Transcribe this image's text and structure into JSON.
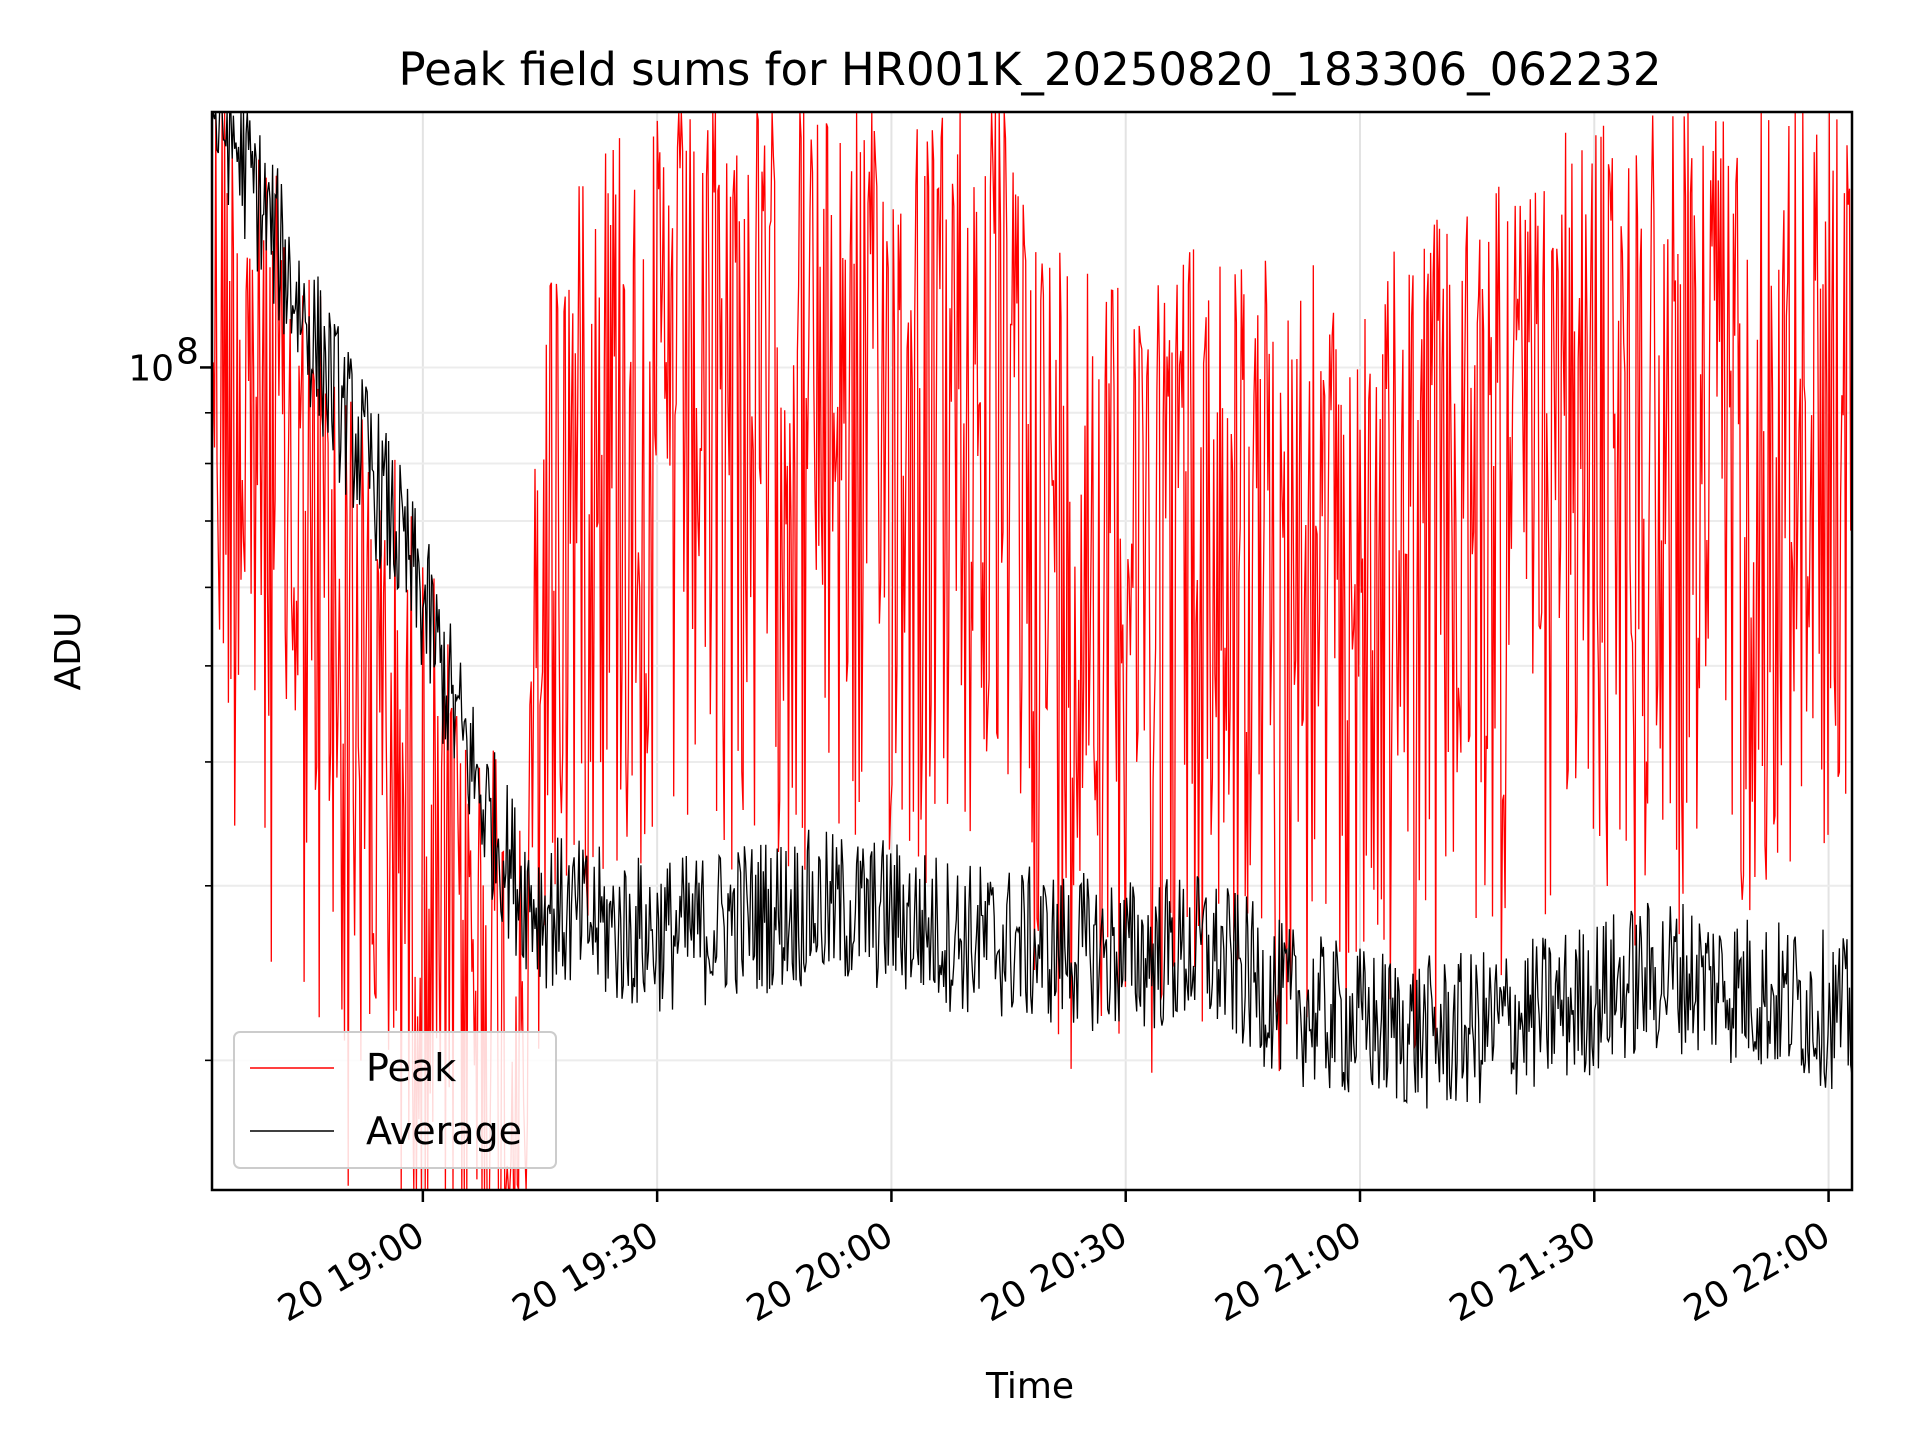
{
  "chart_data": {
    "type": "line",
    "title": "Peak field sums for HR001K_20250820_183306_062232",
    "xlabel": "Time",
    "ylabel": "ADU",
    "x_range": [
      "2025-08-20 18:33",
      "2025-08-20 22:03"
    ],
    "x_ticks": [
      {
        "t": "2025-08-20 19:00",
        "label": "20 19:00"
      },
      {
        "t": "2025-08-20 19:30",
        "label": "20 19:30"
      },
      {
        "t": "2025-08-20 20:00",
        "label": "20 20:00"
      },
      {
        "t": "2025-08-20 20:30",
        "label": "20 20:30"
      },
      {
        "t": "2025-08-20 21:00",
        "label": "20 21:00"
      },
      {
        "t": "2025-08-20 21:30",
        "label": "20 21:30"
      },
      {
        "t": "2025-08-20 22:00",
        "label": "20 22:00"
      }
    ],
    "y_scale": "log",
    "ylim": [
      14800000,
      181000000
    ],
    "y_ticks": [
      {
        "value": 100000000,
        "label": "10",
        "exp": "8"
      }
    ],
    "grid": true,
    "legend_position": "lower-left",
    "series": [
      {
        "name": "Peak",
        "color": "#ff0000",
        "points": [
          [
            "2025-08-20 18:33",
            181000000
          ],
          [
            "2025-08-20 18:37",
            160000000
          ],
          [
            "2025-08-20 18:40",
            130000000
          ],
          [
            "2025-08-20 18:43",
            118000000
          ],
          [
            "2025-08-20 18:46",
            100000000
          ],
          [
            "2025-08-20 18:49",
            88000000
          ],
          [
            "2025-08-20 18:52",
            75000000
          ],
          [
            "2025-08-20 18:55",
            66000000
          ],
          [
            "2025-08-20 18:58",
            58000000
          ],
          [
            "2025-08-20 19:01",
            50000000
          ],
          [
            "2025-08-20 19:04",
            42000000
          ],
          [
            "2025-08-20 19:07",
            37000000
          ],
          [
            "2025-08-20 19:10",
            34000000
          ],
          [
            "2025-08-20 19:13",
            30000000
          ],
          [
            "2025-08-20 19:15",
            95000000
          ],
          [
            "2025-08-20 19:20",
            140000000
          ],
          [
            "2025-08-20 19:25",
            150000000
          ],
          [
            "2025-08-20 19:30",
            150000000
          ],
          [
            "2025-08-20 19:40",
            155000000
          ],
          [
            "2025-08-20 19:50",
            150000000
          ],
          [
            "2025-08-20 20:00",
            150000000
          ],
          [
            "2025-08-20 20:10",
            152000000
          ],
          [
            "2025-08-20 20:16",
            150000000
          ],
          [
            "2025-08-20 20:20",
            110000000
          ],
          [
            "2025-08-20 20:30",
            110000000
          ],
          [
            "2025-08-20 20:40",
            108000000
          ],
          [
            "2025-08-20 20:50",
            100000000
          ],
          [
            "2025-08-20 21:00",
            95000000
          ],
          [
            "2025-08-20 21:10",
            115000000
          ],
          [
            "2025-08-20 21:20",
            128000000
          ],
          [
            "2025-08-20 21:30",
            140000000
          ],
          [
            "2025-08-20 21:40",
            148000000
          ],
          [
            "2025-08-20 21:50",
            150000000
          ],
          [
            "2025-08-20 22:00",
            152000000
          ],
          [
            "2025-08-20 22:03",
            150000000
          ]
        ]
      },
      {
        "name": "Average",
        "color": "#000000",
        "points": [
          [
            "2025-08-20 18:33",
            181000000
          ],
          [
            "2025-08-20 18:35",
            175000000
          ],
          [
            "2025-08-20 18:38",
            155000000
          ],
          [
            "2025-08-20 18:41",
            135000000
          ],
          [
            "2025-08-20 18:44",
            117000000
          ],
          [
            "2025-08-20 18:47",
            102000000
          ],
          [
            "2025-08-20 18:50",
            89000000
          ],
          [
            "2025-08-20 18:53",
            80000000
          ],
          [
            "2025-08-20 18:56",
            70000000
          ],
          [
            "2025-08-20 19:00",
            58000000
          ],
          [
            "2025-08-20 19:04",
            45000000
          ],
          [
            "2025-08-20 19:08",
            36000000
          ],
          [
            "2025-08-20 19:12",
            30500000
          ],
          [
            "2025-08-20 19:15",
            28500000
          ],
          [
            "2025-08-20 19:20",
            27800000
          ],
          [
            "2025-08-20 19:25",
            27000000
          ],
          [
            "2025-08-20 19:30",
            26800000
          ],
          [
            "2025-08-20 19:35",
            27000000
          ],
          [
            "2025-08-20 19:40",
            27800000
          ],
          [
            "2025-08-20 19:50",
            28500000
          ],
          [
            "2025-08-20 20:00",
            28000000
          ],
          [
            "2025-08-20 20:10",
            26500000
          ],
          [
            "2025-08-20 20:20",
            26000000
          ],
          [
            "2025-08-20 20:30",
            25500000
          ],
          [
            "2025-08-20 20:40",
            25800000
          ],
          [
            "2025-08-20 20:45",
            24500000
          ],
          [
            "2025-08-20 20:50",
            23000000
          ],
          [
            "2025-08-20 20:55",
            22200000
          ],
          [
            "2025-08-20 21:00",
            21800000
          ],
          [
            "2025-08-20 21:05",
            21500000
          ],
          [
            "2025-08-20 21:10",
            21200000
          ],
          [
            "2025-08-20 21:15",
            21500000
          ],
          [
            "2025-08-20 21:20",
            22000000
          ],
          [
            "2025-08-20 21:25",
            22500000
          ],
          [
            "2025-08-20 21:30",
            23200000
          ],
          [
            "2025-08-20 21:35",
            24000000
          ],
          [
            "2025-08-20 21:40",
            24500000
          ],
          [
            "2025-08-20 21:45",
            24000000
          ],
          [
            "2025-08-20 21:50",
            23500000
          ],
          [
            "2025-08-20 21:55",
            23000000
          ],
          [
            "2025-08-20 22:00",
            22500000
          ],
          [
            "2025-08-20 22:03",
            22000000
          ]
        ]
      }
    ]
  }
}
